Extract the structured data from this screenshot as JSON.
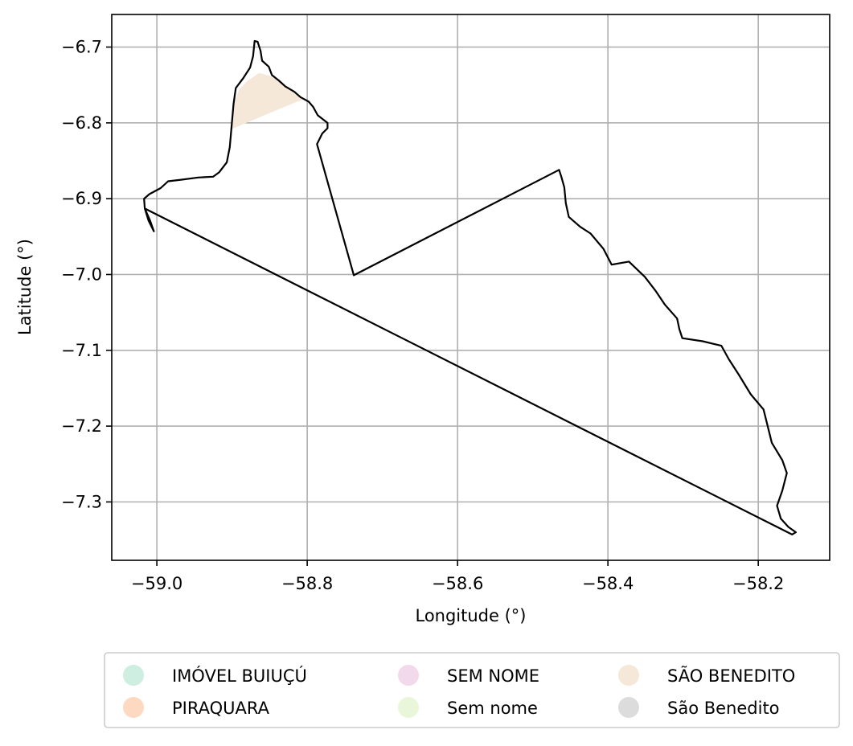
{
  "chart_data": {
    "type": "map",
    "xlabel": "Longitude (°)",
    "ylabel": "Latitude (°)",
    "xlim": [
      -59.06,
      -58.105
    ],
    "ylim": [
      -7.377,
      -6.657
    ],
    "grid": true,
    "x_ticks": [
      {
        "value": -59.0,
        "label": "−59.0"
      },
      {
        "value": -58.8,
        "label": "−58.8"
      },
      {
        "value": -58.6,
        "label": "−58.6"
      },
      {
        "value": -58.4,
        "label": "−58.4"
      },
      {
        "value": -58.2,
        "label": "−58.2"
      }
    ],
    "y_ticks": [
      {
        "value": -6.7,
        "label": "−6.7"
      },
      {
        "value": -6.8,
        "label": "−6.8"
      },
      {
        "value": -6.9,
        "label": "−6.9"
      },
      {
        "value": -7.0,
        "label": "−7.0"
      },
      {
        "value": -7.1,
        "label": "−7.1"
      },
      {
        "value": -7.2,
        "label": "−7.2"
      },
      {
        "value": -7.3,
        "label": "−7.3"
      }
    ],
    "legend": {
      "placement": "bottom-center",
      "columns": 3,
      "entries": [
        {
          "label": "IMÓVEL BUIUÇÚ",
          "color": "#cdeee0"
        },
        {
          "label": "PIRAQUARA",
          "color": "#fdd9c2"
        },
        {
          "label": "SEM NOME",
          "color": "#f3d9ec"
        },
        {
          "label": "Sem nome",
          "color": "#e9f6d9"
        },
        {
          "label": "SÃO BENEDITO",
          "color": "#f5e8d8"
        },
        {
          "label": "São Benedito",
          "color": "#dcdcdc"
        }
      ]
    },
    "boundary": {
      "color": "#000000",
      "points": [
        [
          -58.738,
          -7.001
        ],
        [
          -58.787,
          -6.828
        ],
        [
          -58.78,
          -6.814
        ],
        [
          -58.773,
          -6.807
        ],
        [
          -58.773,
          -6.8
        ],
        [
          -58.786,
          -6.79
        ],
        [
          -58.792,
          -6.779
        ],
        [
          -58.798,
          -6.772
        ],
        [
          -58.809,
          -6.766
        ],
        [
          -58.817,
          -6.759
        ],
        [
          -58.829,
          -6.752
        ],
        [
          -58.838,
          -6.744
        ],
        [
          -58.847,
          -6.737
        ],
        [
          -58.851,
          -6.726
        ],
        [
          -58.86,
          -6.718
        ],
        [
          -58.862,
          -6.705
        ],
        [
          -58.866,
          -6.693
        ],
        [
          -58.87,
          -6.692
        ],
        [
          -58.872,
          -6.712
        ],
        [
          -58.876,
          -6.727
        ],
        [
          -58.885,
          -6.741
        ],
        [
          -58.895,
          -6.754
        ],
        [
          -58.898,
          -6.775
        ],
        [
          -58.9,
          -6.798
        ],
        [
          -58.903,
          -6.832
        ],
        [
          -58.907,
          -6.852
        ],
        [
          -58.917,
          -6.865
        ],
        [
          -58.925,
          -6.871
        ],
        [
          -58.945,
          -6.872
        ],
        [
          -58.968,
          -6.875
        ],
        [
          -58.985,
          -6.877
        ],
        [
          -58.995,
          -6.886
        ],
        [
          -59.01,
          -6.894
        ],
        [
          -59.017,
          -6.9
        ],
        [
          -59.016,
          -6.913
        ],
        [
          -59.009,
          -6.929
        ],
        [
          -59.004,
          -6.943
        ],
        [
          -59.011,
          -6.929
        ],
        [
          -59.016,
          -6.913
        ],
        [
          -58.155,
          -7.343
        ],
        [
          -58.15,
          -7.34
        ],
        [
          -58.16,
          -7.333
        ],
        [
          -58.17,
          -7.322
        ],
        [
          -58.175,
          -7.305
        ],
        [
          -58.168,
          -7.285
        ],
        [
          -58.162,
          -7.262
        ],
        [
          -58.168,
          -7.245
        ],
        [
          -58.182,
          -7.222
        ],
        [
          -58.188,
          -7.198
        ],
        [
          -58.193,
          -7.178
        ],
        [
          -58.21,
          -7.158
        ],
        [
          -58.226,
          -7.132
        ],
        [
          -58.239,
          -7.112
        ],
        [
          -58.249,
          -7.094
        ],
        [
          -58.274,
          -7.088
        ],
        [
          -58.301,
          -7.084
        ],
        [
          -58.305,
          -7.072
        ],
        [
          -58.308,
          -7.058
        ],
        [
          -58.324,
          -7.04
        ],
        [
          -58.337,
          -7.021
        ],
        [
          -58.351,
          -7.003
        ],
        [
          -58.372,
          -6.983
        ],
        [
          -58.395,
          -6.987
        ],
        [
          -58.406,
          -6.966
        ],
        [
          -58.423,
          -6.946
        ],
        [
          -58.437,
          -6.937
        ],
        [
          -58.452,
          -6.924
        ],
        [
          -58.456,
          -6.906
        ],
        [
          -58.458,
          -6.885
        ],
        [
          -58.462,
          -6.871
        ],
        [
          -58.465,
          -6.862
        ],
        [
          -58.738,
          -7.001
        ]
      ]
    },
    "fills": [
      {
        "label": "SÃO BENEDITO",
        "color": "#f5e8d8",
        "points": [
          [
            -58.9,
            -6.808
          ],
          [
            -58.898,
            -6.775
          ],
          [
            -58.891,
            -6.757
          ],
          [
            -58.88,
            -6.745
          ],
          [
            -58.864,
            -6.734
          ],
          [
            -58.85,
            -6.738
          ],
          [
            -58.838,
            -6.744
          ],
          [
            -58.826,
            -6.753
          ],
          [
            -58.812,
            -6.762
          ],
          [
            -58.806,
            -6.769
          ],
          [
            -58.85,
            -6.787
          ],
          [
            -58.9,
            -6.808
          ]
        ]
      }
    ]
  }
}
